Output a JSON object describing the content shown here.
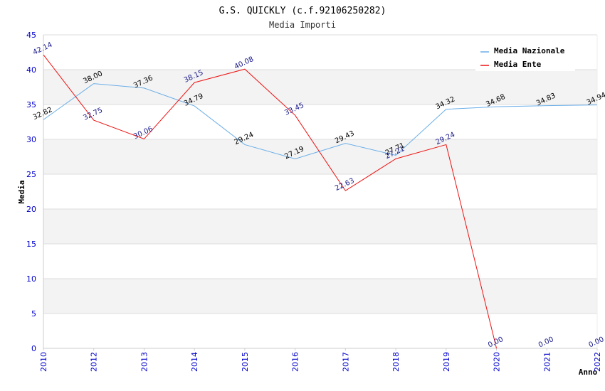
{
  "chart_data": {
    "type": "line",
    "title": "G.S. QUICKLY (c.f.92106250282)",
    "subtitle": "Media Importi",
    "xlabel": "Anno",
    "ylabel": "Media",
    "ylim": [
      0,
      45
    ],
    "yticks": [
      0,
      5,
      10,
      15,
      20,
      25,
      30,
      35,
      40,
      45
    ],
    "categories": [
      "2010",
      "2012",
      "2013",
      "2014",
      "2015",
      "2016",
      "2017",
      "2018",
      "2019",
      "2020",
      "2021",
      "2022"
    ],
    "legend_position": "top-right",
    "grid": true,
    "series": [
      {
        "name": "Media Nazionale",
        "color": "#6aaee8",
        "values": [
          32.82,
          38.0,
          37.36,
          34.79,
          29.24,
          27.19,
          29.43,
          27.71,
          34.32,
          34.68,
          34.83,
          34.94
        ],
        "labels": [
          "32.82",
          "38.00",
          "37.36",
          "34.79",
          "29.24",
          "27.19",
          "29.43",
          "27.71",
          "34.32",
          "34.68",
          "34.83",
          "34.94"
        ]
      },
      {
        "name": "Media Ente",
        "color": "#ee1111",
        "values": [
          42.14,
          32.75,
          30.06,
          38.15,
          40.08,
          33.45,
          22.63,
          27.21,
          29.24,
          0.0,
          null,
          null
        ],
        "labels": [
          "42.14",
          "32.75",
          "30.06",
          "38.15",
          "40.08",
          "33.45",
          "22.63",
          "27.21",
          "29.24",
          "0.00",
          "0.00",
          "0.00"
        ]
      }
    ]
  }
}
